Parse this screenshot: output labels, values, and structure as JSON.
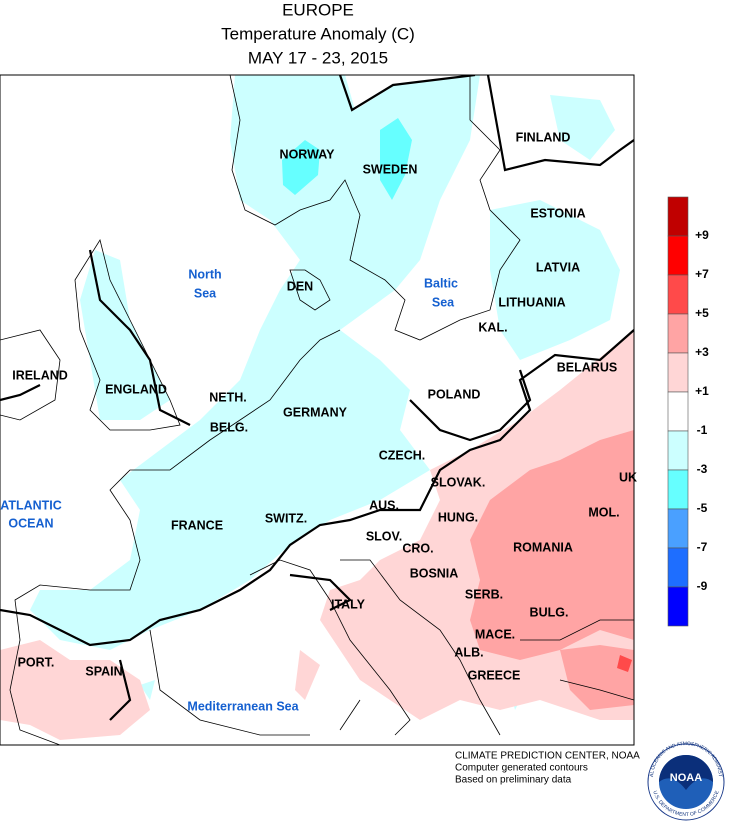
{
  "header": {
    "title": "EUROPE",
    "subtitle": "Temperature Anomaly (C)",
    "dates": "MAY 17 - 23, 2015"
  },
  "map_labels": [
    "NORWAY",
    "SWEDEN",
    "FINLAND",
    "ESTONIA",
    "LATVIA",
    "LITHUANIA",
    "KAL.",
    "BELARUS",
    "DEN",
    "IRELAND",
    "ENGLAND",
    "NETH.",
    "BELG.",
    "GERMANY",
    "POLAND",
    "CZECH.",
    "SLOVAK.",
    "UK",
    "FRANCE",
    "SWITZ.",
    "AUS.",
    "HUNG.",
    "MOL.",
    "SLOV.",
    "CRO.",
    "ROMANIA",
    "BOSNIA",
    "SERB.",
    "BULG.",
    "ITALY",
    "MACE.",
    "ALB.",
    "PORT.",
    "SPAIN",
    "GREECE"
  ],
  "water_labels": [
    [
      "North",
      "Sea"
    ],
    [
      "Baltic",
      "Sea"
    ],
    [
      "ATLANTIC",
      "OCEAN"
    ],
    [
      "Mediterranean Sea"
    ]
  ],
  "legend": {
    "colors": [
      "#c00000",
      "#ff0000",
      "#ff4a4a",
      "#ffa4a4",
      "#ffd6d6",
      "#ffffff",
      "#ccffff",
      "#66ffff",
      "#4aa0ff",
      "#1e6eff",
      "#0000ff"
    ],
    "labels": [
      "+9",
      "+7",
      "+5",
      "+3",
      "+1",
      "-1",
      "-3",
      "-5",
      "-7",
      "-9"
    ]
  },
  "footer": {
    "lines": [
      "CLIMATE PREDICTION CENTER, NOAA",
      "Computer generated contours",
      "Based on preliminary data"
    ]
  },
  "logo": {
    "text": "NOAA",
    "ring_top": "NATIONAL OCEANIC AND ATMOSPHERIC ADMINISTRATION",
    "ring_bottom": "U.S. DEPARTMENT OF COMMERCE"
  }
}
